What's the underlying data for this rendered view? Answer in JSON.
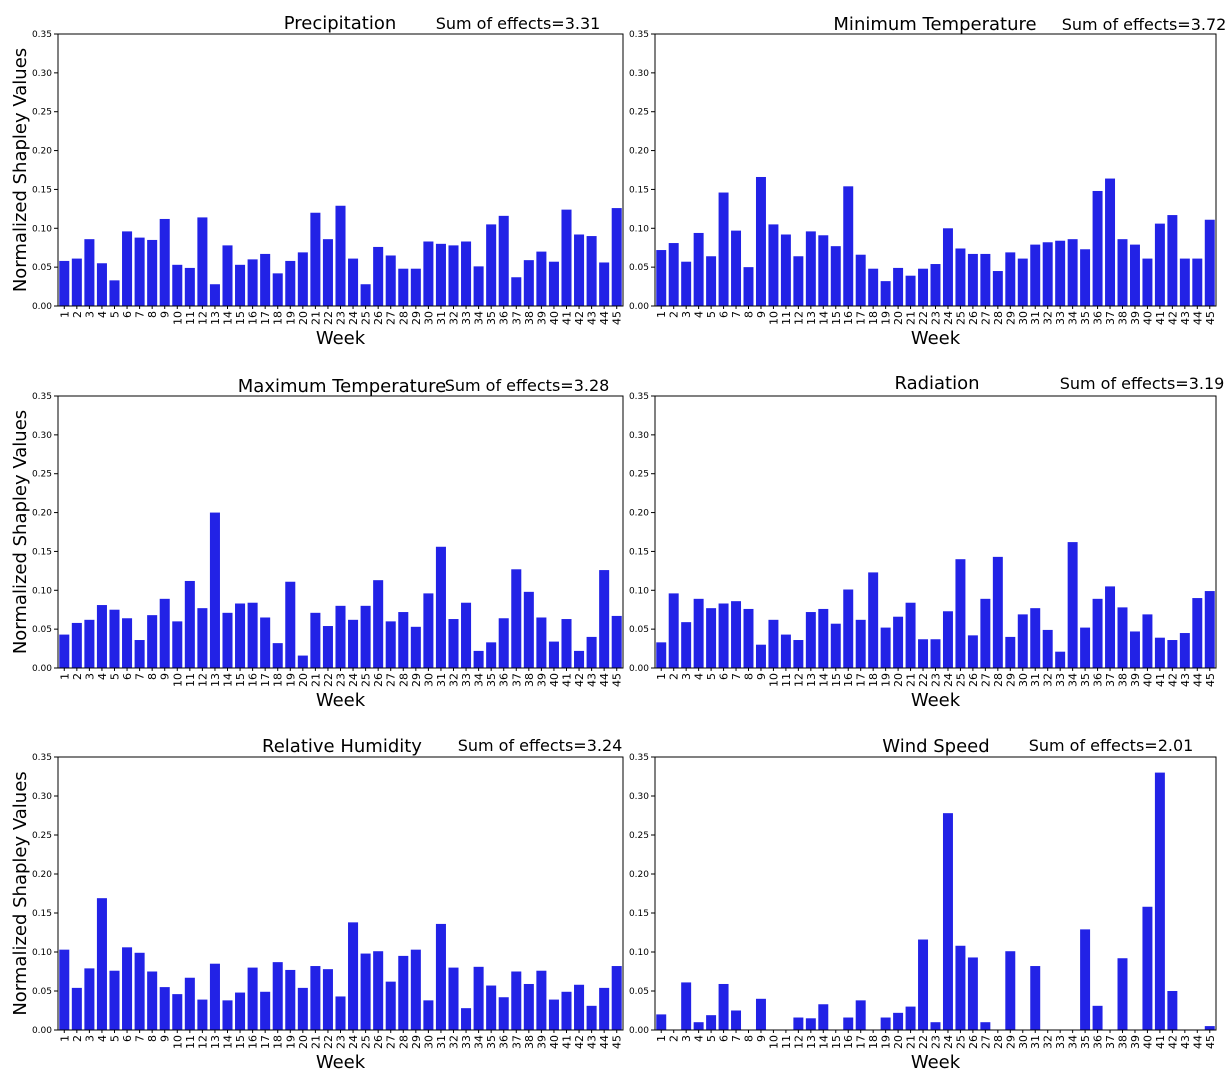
{
  "figure": {
    "ylabel": "Normalized Shapley Values",
    "bar_color": "#2222e6"
  },
  "chart_data": [
    {
      "type": "bar",
      "title": "Precipitation",
      "annotation": "Sum of effects=3.31",
      "xlabel": "Week",
      "ylabel": "Normalized Shapley Values",
      "ylim": [
        0,
        0.35
      ],
      "yticks": [
        "0.00",
        "0.05",
        "0.10",
        "0.15",
        "0.20",
        "0.25",
        "0.30",
        "0.35"
      ],
      "categories": [
        "1",
        "2",
        "3",
        "4",
        "5",
        "6",
        "7",
        "8",
        "9",
        "10",
        "11",
        "12",
        "13",
        "14",
        "15",
        "16",
        "17",
        "18",
        "19",
        "20",
        "21",
        "22",
        "23",
        "24",
        "25",
        "26",
        "27",
        "28",
        "29",
        "30",
        "31",
        "32",
        "33",
        "34",
        "35",
        "36",
        "37",
        "38",
        "39",
        "40",
        "41",
        "42",
        "43",
        "44",
        "45"
      ],
      "values": [
        0.058,
        0.061,
        0.086,
        0.055,
        0.033,
        0.096,
        0.088,
        0.085,
        0.112,
        0.053,
        0.049,
        0.114,
        0.028,
        0.078,
        0.053,
        0.06,
        0.067,
        0.042,
        0.058,
        0.069,
        0.12,
        0.086,
        0.129,
        0.061,
        0.028,
        0.076,
        0.065,
        0.048,
        0.048,
        0.083,
        0.08,
        0.078,
        0.083,
        0.051,
        0.105,
        0.116,
        0.037,
        0.059,
        0.07,
        0.057,
        0.124,
        0.092,
        0.09,
        0.056,
        0.126
      ]
    },
    {
      "type": "bar",
      "title": "Minimum Temperature",
      "annotation": "Sum of effects=3.72",
      "xlabel": "Week",
      "ylabel": "",
      "ylim": [
        0,
        0.35
      ],
      "yticks": [
        "0.00",
        "0.05",
        "0.10",
        "0.15",
        "0.20",
        "0.25",
        "0.30",
        "0.35"
      ],
      "categories": [
        "1",
        "2",
        "3",
        "4",
        "5",
        "6",
        "7",
        "8",
        "9",
        "10",
        "11",
        "12",
        "13",
        "14",
        "15",
        "16",
        "17",
        "18",
        "19",
        "20",
        "21",
        "22",
        "23",
        "24",
        "25",
        "26",
        "27",
        "28",
        "29",
        "30",
        "31",
        "32",
        "33",
        "34",
        "35",
        "36",
        "37",
        "38",
        "39",
        "40",
        "41",
        "42",
        "43",
        "44",
        "45"
      ],
      "values": [
        0.072,
        0.081,
        0.057,
        0.094,
        0.064,
        0.146,
        0.097,
        0.05,
        0.166,
        0.105,
        0.092,
        0.064,
        0.096,
        0.091,
        0.077,
        0.154,
        0.066,
        0.048,
        0.032,
        0.049,
        0.039,
        0.048,
        0.054,
        0.1,
        0.074,
        0.067,
        0.067,
        0.045,
        0.069,
        0.061,
        0.079,
        0.082,
        0.084,
        0.086,
        0.073,
        0.148,
        0.164,
        0.086,
        0.079,
        0.061,
        0.106,
        0.117,
        0.061,
        0.061,
        0.111
      ]
    },
    {
      "type": "bar",
      "title": "Maximum Temperature",
      "annotation": "Sum of effects=3.28",
      "xlabel": "Week",
      "ylabel": "Normalized Shapley Values",
      "ylim": [
        0,
        0.35
      ],
      "yticks": [
        "0.00",
        "0.05",
        "0.10",
        "0.15",
        "0.20",
        "0.25",
        "0.30",
        "0.35"
      ],
      "categories": [
        "1",
        "2",
        "3",
        "4",
        "5",
        "6",
        "7",
        "8",
        "9",
        "10",
        "11",
        "12",
        "13",
        "14",
        "15",
        "16",
        "17",
        "18",
        "19",
        "20",
        "21",
        "22",
        "23",
        "24",
        "25",
        "26",
        "27",
        "28",
        "29",
        "30",
        "31",
        "32",
        "33",
        "34",
        "35",
        "36",
        "37",
        "38",
        "39",
        "40",
        "41",
        "42",
        "43",
        "44",
        "45"
      ],
      "values": [
        0.043,
        0.058,
        0.062,
        0.081,
        0.075,
        0.064,
        0.036,
        0.068,
        0.089,
        0.06,
        0.112,
        0.077,
        0.2,
        0.071,
        0.083,
        0.084,
        0.065,
        0.032,
        0.111,
        0.016,
        0.071,
        0.054,
        0.08,
        0.062,
        0.08,
        0.113,
        0.06,
        0.072,
        0.053,
        0.096,
        0.156,
        0.063,
        0.084,
        0.022,
        0.033,
        0.064,
        0.127,
        0.098,
        0.065,
        0.034,
        0.063,
        0.022,
        0.04,
        0.126,
        0.067
      ]
    },
    {
      "type": "bar",
      "title": "Radiation",
      "annotation": "Sum of effects=3.19",
      "xlabel": "Week",
      "ylabel": "",
      "ylim": [
        0,
        0.35
      ],
      "yticks": [
        "0.00",
        "0.05",
        "0.10",
        "0.15",
        "0.20",
        "0.25",
        "0.30",
        "0.35"
      ],
      "categories": [
        "1",
        "2",
        "3",
        "4",
        "5",
        "6",
        "7",
        "8",
        "9",
        "10",
        "11",
        "12",
        "13",
        "14",
        "15",
        "16",
        "17",
        "18",
        "19",
        "20",
        "21",
        "22",
        "23",
        "24",
        "25",
        "26",
        "27",
        "28",
        "29",
        "30",
        "31",
        "32",
        "33",
        "34",
        "35",
        "36",
        "37",
        "38",
        "39",
        "40",
        "41",
        "42",
        "43",
        "44",
        "45"
      ],
      "values": [
        0.033,
        0.096,
        0.059,
        0.089,
        0.077,
        0.083,
        0.086,
        0.076,
        0.03,
        0.062,
        0.043,
        0.036,
        0.072,
        0.076,
        0.057,
        0.101,
        0.062,
        0.123,
        0.052,
        0.066,
        0.084,
        0.037,
        0.037,
        0.073,
        0.14,
        0.042,
        0.089,
        0.143,
        0.04,
        0.069,
        0.077,
        0.049,
        0.021,
        0.162,
        0.052,
        0.089,
        0.105,
        0.078,
        0.047,
        0.069,
        0.039,
        0.036,
        0.045,
        0.09,
        0.099
      ]
    },
    {
      "type": "bar",
      "title": "Relative Humidity",
      "annotation": "Sum of effects=3.24",
      "xlabel": "Week",
      "ylabel": "Normalized Shapley Values",
      "ylim": [
        0,
        0.35
      ],
      "yticks": [
        "0.00",
        "0.05",
        "0.10",
        "0.15",
        "0.20",
        "0.25",
        "0.30",
        "0.35"
      ],
      "categories": [
        "1",
        "2",
        "3",
        "4",
        "5",
        "6",
        "7",
        "8",
        "9",
        "10",
        "11",
        "12",
        "13",
        "14",
        "15",
        "16",
        "17",
        "18",
        "19",
        "20",
        "21",
        "22",
        "23",
        "24",
        "25",
        "26",
        "27",
        "28",
        "29",
        "30",
        "31",
        "32",
        "33",
        "34",
        "35",
        "36",
        "37",
        "38",
        "39",
        "40",
        "41",
        "42",
        "43",
        "44",
        "45"
      ],
      "values": [
        0.103,
        0.054,
        0.079,
        0.169,
        0.076,
        0.106,
        0.099,
        0.075,
        0.055,
        0.046,
        0.067,
        0.039,
        0.085,
        0.038,
        0.048,
        0.08,
        0.049,
        0.087,
        0.077,
        0.054,
        0.082,
        0.078,
        0.043,
        0.138,
        0.098,
        0.101,
        0.062,
        0.095,
        0.103,
        0.038,
        0.136,
        0.08,
        0.028,
        0.081,
        0.057,
        0.042,
        0.075,
        0.059,
        0.076,
        0.039,
        0.049,
        0.058,
        0.031,
        0.054,
        0.082
      ]
    },
    {
      "type": "bar",
      "title": "Wind Speed",
      "annotation": "Sum of effects=2.01",
      "xlabel": "Week",
      "ylabel": "",
      "ylim": [
        0,
        0.35
      ],
      "yticks": [
        "0.00",
        "0.05",
        "0.10",
        "0.15",
        "0.20",
        "0.25",
        "0.30",
        "0.35"
      ],
      "categories": [
        "1",
        "2",
        "3",
        "4",
        "5",
        "6",
        "7",
        "8",
        "9",
        "10",
        "11",
        "12",
        "13",
        "14",
        "15",
        "16",
        "17",
        "18",
        "19",
        "20",
        "21",
        "22",
        "23",
        "24",
        "25",
        "26",
        "27",
        "28",
        "29",
        "30",
        "31",
        "32",
        "33",
        "34",
        "35",
        "36",
        "37",
        "38",
        "39",
        "40",
        "41",
        "42",
        "43",
        "44",
        "45"
      ],
      "values": [
        0.02,
        0.0,
        0.061,
        0.01,
        0.019,
        0.059,
        0.025,
        0.0,
        0.04,
        0.0,
        0.0,
        0.016,
        0.015,
        0.033,
        0.0,
        0.016,
        0.038,
        0.0,
        0.016,
        0.022,
        0.03,
        0.116,
        0.01,
        0.278,
        0.108,
        0.093,
        0.01,
        0.0,
        0.101,
        0.0,
        0.082,
        0.0,
        0.0,
        0.0,
        0.129,
        0.031,
        0.0,
        0.092,
        0.0,
        0.158,
        0.33,
        0.05,
        0.0,
        0.0,
        0.005
      ]
    }
  ]
}
